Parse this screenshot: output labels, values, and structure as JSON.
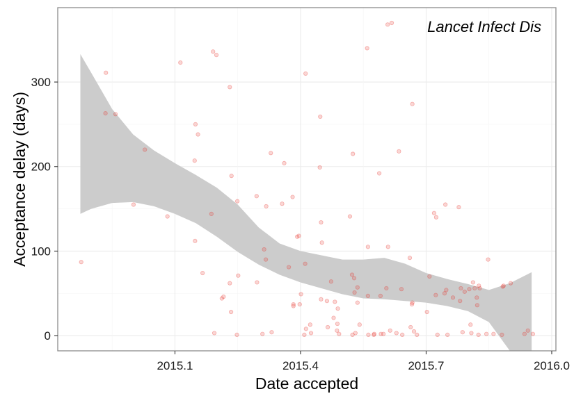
{
  "chart_data": {
    "type": "scatter",
    "xlabel": "Date accepted",
    "ylabel": "Acceptance delay (days)",
    "xlim": [
      2014.82,
      2016.01
    ],
    "ylim": [
      -18,
      388
    ],
    "x_ticks": [
      2015.1,
      2015.4,
      2015.7,
      2016.0
    ],
    "x_tick_labels": [
      "2015.1",
      "2015.4",
      "2015.7",
      "2016.0"
    ],
    "y_ticks": [
      0,
      100,
      200,
      300
    ],
    "y_tick_labels": [
      "0",
      "100",
      "200",
      "300"
    ],
    "grid": true,
    "legend_position": "top-right",
    "series": [
      {
        "name": "Lancet Infect Dis",
        "color": "#e8302a",
        "points": [
          [
            2014.876,
            87
          ],
          [
            2014.935,
            311
          ],
          [
            2014.934,
            263
          ],
          [
            2014.958,
            262
          ],
          [
            2015.001,
            155
          ],
          [
            2015.028,
            220
          ],
          [
            2015.082,
            141
          ],
          [
            2015.113,
            323
          ],
          [
            2015.147,
            207
          ],
          [
            2015.149,
            250
          ],
          [
            2015.155,
            238
          ],
          [
            2015.148,
            112
          ],
          [
            2015.166,
            74
          ],
          [
            2015.187,
            144
          ],
          [
            2015.191,
            336
          ],
          [
            2015.199,
            332
          ],
          [
            2015.194,
            3
          ],
          [
            2015.212,
            44
          ],
          [
            2015.216,
            46
          ],
          [
            2015.231,
            294
          ],
          [
            2015.235,
            189
          ],
          [
            2015.231,
            62
          ],
          [
            2015.234,
            28
          ],
          [
            2015.249,
            159
          ],
          [
            2015.251,
            71
          ],
          [
            2015.248,
            1
          ],
          [
            2015.295,
            165
          ],
          [
            2015.296,
            63
          ],
          [
            2015.309,
            2
          ],
          [
            2015.313,
            102
          ],
          [
            2015.318,
            153
          ],
          [
            2015.317,
            90
          ],
          [
            2015.329,
            216
          ],
          [
            2015.331,
            4
          ],
          [
            2015.356,
            156
          ],
          [
            2015.361,
            204
          ],
          [
            2015.372,
            81
          ],
          [
            2015.381,
            164
          ],
          [
            2015.383,
            37
          ],
          [
            2015.383,
            35
          ],
          [
            2015.392,
            117
          ],
          [
            2015.396,
            118
          ],
          [
            2015.398,
            37
          ],
          [
            2015.401,
            49
          ],
          [
            2015.411,
            85
          ],
          [
            2015.412,
            310
          ],
          [
            2015.413,
            8
          ],
          [
            2015.409,
            1
          ],
          [
            2015.423,
            13
          ],
          [
            2015.425,
            3
          ],
          [
            2015.447,
            259
          ],
          [
            2015.446,
            199
          ],
          [
            2015.449,
            134
          ],
          [
            2015.451,
            110
          ],
          [
            2015.449,
            43
          ],
          [
            2015.463,
            41
          ],
          [
            2015.465,
            10
          ],
          [
            2015.473,
            64
          ],
          [
            2015.479,
            21
          ],
          [
            2015.482,
            40
          ],
          [
            2015.487,
            6
          ],
          [
            2015.488,
            14
          ],
          [
            2015.489,
            32
          ],
          [
            2015.492,
            2
          ],
          [
            2015.518,
            141
          ],
          [
            2015.525,
            215
          ],
          [
            2015.523,
            72
          ],
          [
            2015.528,
            68
          ],
          [
            2015.529,
            51
          ],
          [
            2015.524,
            1
          ],
          [
            2015.531,
            3
          ],
          [
            2015.536,
            57
          ],
          [
            2015.536,
            39
          ],
          [
            2015.541,
            13
          ],
          [
            2015.559,
            340
          ],
          [
            2015.561,
            105
          ],
          [
            2015.561,
            47
          ],
          [
            2015.562,
            1
          ],
          [
            2015.575,
            1
          ],
          [
            2015.576,
            2
          ],
          [
            2015.588,
            192
          ],
          [
            2015.591,
            47
          ],
          [
            2015.592,
            2
          ],
          [
            2015.598,
            2
          ],
          [
            2015.605,
            56
          ],
          [
            2015.608,
            368
          ],
          [
            2015.609,
            105
          ],
          [
            2015.614,
            6
          ],
          [
            2015.629,
            3
          ],
          [
            2015.635,
            218
          ],
          [
            2015.641,
            55
          ],
          [
            2015.643,
            1
          ],
          [
            2015.661,
            92
          ],
          [
            2015.663,
            10
          ],
          [
            2015.667,
            274
          ],
          [
            2015.666,
            37
          ],
          [
            2015.667,
            39
          ],
          [
            2015.671,
            5
          ],
          [
            2015.678,
            1
          ],
          [
            2015.702,
            28
          ],
          [
            2015.708,
            70
          ],
          [
            2015.719,
            145
          ],
          [
            2015.724,
            140
          ],
          [
            2015.723,
            48
          ],
          [
            2015.727,
            1
          ],
          [
            2015.746,
            155
          ],
          [
            2015.744,
            50
          ],
          [
            2015.748,
            54
          ],
          [
            2015.751,
            1
          ],
          [
            2015.764,
            45
          ],
          [
            2015.778,
            152
          ],
          [
            2015.783,
            56
          ],
          [
            2015.781,
            41
          ],
          [
            2015.787,
            4
          ],
          [
            2015.792,
            52
          ],
          [
            2015.803,
            55
          ],
          [
            2015.806,
            13
          ],
          [
            2015.808,
            3
          ],
          [
            2015.812,
            63
          ],
          [
            2015.816,
            56
          ],
          [
            2015.821,
            45
          ],
          [
            2015.826,
            59
          ],
          [
            2015.828,
            56
          ],
          [
            2015.822,
            36
          ],
          [
            2015.825,
            1
          ],
          [
            2015.844,
            2
          ],
          [
            2015.848,
            90
          ],
          [
            2015.861,
            2
          ],
          [
            2015.885,
            59
          ],
          [
            2015.883,
            58
          ],
          [
            2015.881,
            1
          ],
          [
            2015.902,
            62
          ],
          [
            2015.935,
            2
          ],
          [
            2015.943,
            6
          ],
          [
            2015.955,
            2
          ]
        ]
      }
    ],
    "smooth": {
      "method": "loess",
      "band_color": "#cccccc",
      "x": [
        2014.874,
        2014.9,
        2014.95,
        2015.0,
        2015.05,
        2015.1,
        2015.15,
        2015.2,
        2015.25,
        2015.3,
        2015.35,
        2015.4,
        2015.45,
        2015.5,
        2015.55,
        2015.6,
        2015.65,
        2015.7,
        2015.75,
        2015.8,
        2015.85,
        2015.9,
        2015.952
      ],
      "lower": [
        144,
        150,
        157,
        158,
        153,
        144,
        133,
        117,
        99,
        84,
        72,
        63,
        56,
        49,
        44,
        43,
        41,
        39,
        35,
        29,
        16,
        -18,
        -18
      ],
      "upper": [
        333,
        311,
        268,
        238,
        219,
        204,
        190,
        175,
        155,
        128,
        109,
        100,
        95,
        90,
        90,
        92,
        85,
        74,
        67,
        61,
        54,
        62,
        75
      ]
    }
  }
}
